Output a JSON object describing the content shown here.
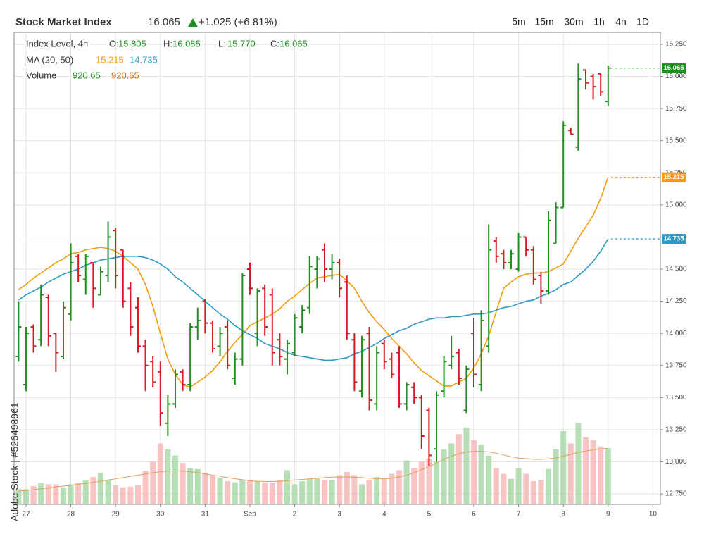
{
  "header": {
    "title": "Stock Market Index",
    "price": "16.065",
    "change": "+1.025 (+6.81%)",
    "timeframes": [
      "5m",
      "15m",
      "30m",
      "1h",
      "4h",
      "1D"
    ]
  },
  "legend": {
    "instrument": "Index Level, 4h",
    "ohlc": [
      {
        "label": "O:",
        "value": "15.805"
      },
      {
        "label": "H:",
        "value": "16.085"
      },
      {
        "label": "L:",
        "value": "15.770"
      },
      {
        "label": "C:",
        "value": "16.065"
      }
    ],
    "ma_label": "MA (20, 50)",
    "ma_values": [
      "15.215",
      "14.735"
    ],
    "volume_label": "Volume",
    "volume_values": [
      "920.65",
      "920.65"
    ]
  },
  "watermark": "Adobe Stock | #526498961",
  "chart_data": {
    "type": "ohlc",
    "x": [
      0,
      1,
      2,
      3,
      4,
      5,
      6,
      7,
      8,
      9,
      10,
      11,
      12,
      13,
      14,
      15,
      16,
      17,
      18,
      19,
      20,
      21,
      22,
      23,
      24,
      25,
      26,
      27,
      28,
      29,
      30,
      31,
      32,
      33,
      34,
      35,
      36,
      37,
      38,
      39,
      40,
      41,
      42,
      43,
      44,
      45,
      46,
      47,
      48,
      49,
      50,
      51,
      52,
      53,
      54,
      55,
      56,
      57,
      58,
      59,
      60,
      61,
      62,
      63,
      64,
      65,
      66,
      67,
      68,
      69,
      70,
      71,
      72,
      73,
      74,
      75,
      76,
      77,
      78,
      79
    ],
    "open": [
      13.82,
      13.6,
      14.05,
      13.95,
      14.28,
      14.0,
      13.82,
      14.15,
      14.6,
      14.42,
      14.55,
      14.3,
      14.45,
      14.8,
      14.65,
      14.35,
      14.2,
      13.9,
      13.78,
      13.7,
      13.3,
      13.45,
      13.7,
      13.6,
      14.05,
      14.25,
      14.08,
      13.9,
      14.05,
      13.65,
      13.8,
      14.5,
      14.0,
      14.35,
      14.3,
      13.95,
      13.8,
      13.85,
      14.05,
      14.2,
      14.5,
      14.65,
      14.5,
      14.55,
      14.4,
      13.95,
      13.55,
      14.0,
      13.45,
      13.92,
      13.8,
      13.85,
      13.45,
      13.58,
      13.5,
      13.4,
      13.1,
      13.55,
      13.75,
      13.85,
      13.4,
      14.0,
      13.6,
      13.9,
      14.72,
      14.62,
      14.55,
      14.5,
      14.75,
      14.65,
      14.45,
      14.33,
      14.7,
      14.98,
      15.58,
      15.45,
      16.05,
      16.0,
      16.02,
      15.805
    ],
    "high": [
      14.25,
      14.05,
      14.07,
      14.38,
      14.3,
      14.0,
      14.25,
      14.7,
      14.62,
      14.62,
      14.55,
      14.52,
      14.87,
      14.82,
      14.65,
      14.4,
      14.28,
      13.95,
      13.82,
      13.78,
      13.52,
      13.72,
      13.72,
      14.08,
      14.2,
      14.27,
      14.1,
      14.05,
      14.1,
      13.85,
      14.47,
      14.55,
      14.35,
      14.38,
      14.35,
      14.0,
      13.95,
      14.15,
      14.22,
      14.6,
      14.6,
      14.7,
      14.62,
      14.58,
      14.45,
      14.0,
      13.98,
      14.05,
      13.9,
      13.95,
      13.85,
      13.9,
      13.62,
      13.62,
      13.52,
      13.42,
      13.55,
      13.82,
      13.98,
      13.88,
      13.75,
      14.12,
      14.18,
      14.85,
      14.75,
      14.65,
      14.65,
      14.78,
      14.75,
      14.68,
      14.48,
      14.95,
      15.02,
      15.65,
      15.6,
      16.1,
      16.05,
      16.02,
      16.02,
      16.085
    ],
    "low": [
      13.78,
      13.55,
      13.85,
      13.9,
      13.9,
      13.7,
      13.8,
      14.1,
      14.4,
      14.3,
      14.2,
      14.3,
      14.4,
      14.35,
      14.2,
      13.98,
      13.85,
      13.55,
      13.58,
      13.28,
      13.2,
      13.42,
      13.55,
      13.55,
      13.95,
      14.0,
      13.85,
      13.82,
      13.72,
      13.6,
      13.75,
      14.3,
      13.9,
      13.98,
      13.75,
      13.75,
      13.68,
      13.82,
      14.0,
      14.15,
      14.35,
      14.4,
      14.42,
      14.28,
      13.95,
      13.55,
      13.5,
      13.4,
      13.4,
      13.72,
      13.65,
      13.42,
      13.4,
      13.45,
      13.1,
      12.97,
      13.0,
      13.5,
      13.72,
      13.6,
      13.38,
      13.58,
      13.55,
      13.85,
      14.55,
      14.5,
      14.5,
      14.48,
      14.6,
      14.38,
      14.23,
      14.3,
      14.7,
      14.98,
      15.55,
      15.42,
      15.9,
      15.82,
      15.85,
      15.77
    ],
    "close": [
      14.05,
      14.0,
      13.9,
      14.3,
      13.98,
      13.85,
      14.2,
      14.55,
      14.45,
      14.6,
      14.35,
      14.48,
      14.75,
      14.45,
      14.25,
      14.05,
      13.9,
      13.75,
      13.62,
      13.38,
      13.45,
      13.68,
      13.6,
      14.05,
      14.1,
      14.08,
      13.88,
      14.0,
      13.75,
      13.8,
      14.45,
      14.35,
      14.33,
      14.05,
      13.85,
      13.82,
      13.92,
      14.12,
      14.18,
      14.52,
      14.58,
      14.5,
      14.55,
      14.35,
      14.0,
      13.62,
      13.95,
      13.48,
      13.85,
      13.78,
      13.68,
      13.45,
      13.6,
      13.5,
      13.2,
      13.05,
      13.52,
      13.78,
      13.82,
      13.65,
      13.72,
      13.68,
      14.1,
      14.65,
      14.6,
      14.55,
      14.62,
      14.75,
      14.65,
      14.42,
      14.33,
      14.88,
      14.98,
      15.62,
      15.55,
      15.98,
      15.95,
      15.92,
      15.88,
      16.065
    ],
    "up_color": "#1f8f1f",
    "down_color": "#d71920",
    "series": [
      {
        "color": "#f39c12",
        "values": [
          14.34,
          14.38,
          14.43,
          14.47,
          14.51,
          14.55,
          14.58,
          14.62,
          14.63,
          14.65,
          14.66,
          14.67,
          14.66,
          14.64,
          14.6,
          14.55,
          14.5,
          14.38,
          14.21,
          14.0,
          13.8,
          13.68,
          13.6,
          13.58,
          13.62,
          13.66,
          13.71,
          13.78,
          13.86,
          13.93,
          13.99,
          14.06,
          14.09,
          14.12,
          14.15,
          14.19,
          14.25,
          14.29,
          14.34,
          14.39,
          14.43,
          14.44,
          14.45,
          14.46,
          14.41,
          14.35,
          14.25,
          14.16,
          14.09,
          14.03,
          13.96,
          13.9,
          13.84,
          13.77,
          13.71,
          13.67,
          13.63,
          13.59,
          13.59,
          13.62,
          13.65,
          13.73,
          13.84,
          13.98,
          14.17,
          14.35,
          14.4,
          14.44,
          14.46,
          14.47,
          14.47,
          14.48,
          14.51,
          14.54,
          14.64,
          14.74,
          14.83,
          14.92,
          15.05,
          15.215
        ]
      },
      {
        "color": "#2e9ac4",
        "values": [
          14.26,
          14.3,
          14.33,
          14.36,
          14.4,
          14.43,
          14.46,
          14.48,
          14.5,
          14.53,
          14.55,
          14.57,
          14.58,
          14.59,
          14.6,
          14.6,
          14.6,
          14.59,
          14.57,
          14.54,
          14.5,
          14.44,
          14.4,
          14.35,
          14.3,
          14.25,
          14.2,
          14.15,
          14.11,
          14.06,
          14.02,
          13.99,
          13.96,
          13.92,
          13.9,
          13.88,
          13.85,
          13.83,
          13.82,
          13.81,
          13.8,
          13.79,
          13.79,
          13.8,
          13.81,
          13.84,
          13.86,
          13.89,
          13.92,
          13.96,
          13.99,
          14.02,
          14.04,
          14.07,
          14.09,
          14.11,
          14.12,
          14.12,
          14.13,
          14.13,
          14.14,
          14.15,
          14.15,
          14.16,
          14.18,
          14.2,
          14.21,
          14.23,
          14.25,
          14.26,
          14.29,
          14.31,
          14.34,
          14.38,
          14.4,
          14.45,
          14.5,
          14.56,
          14.64,
          14.735
        ]
      }
    ],
    "volume": [
      250,
      250,
      300,
      350,
      330,
      330,
      280,
      330,
      350,
      400,
      450,
      520,
      400,
      320,
      280,
      290,
      320,
      550,
      700,
      1000,
      900,
      800,
      680,
      600,
      580,
      520,
      470,
      430,
      380,
      360,
      400,
      400,
      380,
      360,
      350,
      400,
      560,
      330,
      380,
      420,
      440,
      400,
      400,
      480,
      530,
      480,
      330,
      400,
      450,
      430,
      500,
      560,
      720,
      600,
      700,
      750,
      700,
      900,
      1000,
      1150,
      1260,
      1050,
      980,
      800,
      600,
      500,
      420,
      600,
      500,
      380,
      400,
      580,
      900,
      1200,
      1000,
      1340,
      1100,
      1050,
      950,
      920.65
    ],
    "volume_ma": [
      220,
      230,
      240,
      255,
      270,
      285,
      300,
      315,
      330,
      345,
      360,
      380,
      400,
      420,
      440,
      460,
      480,
      500,
      520,
      535,
      545,
      550,
      545,
      535,
      520,
      500,
      480,
      460,
      440,
      420,
      405,
      390,
      380,
      375,
      375,
      380,
      390,
      400,
      410,
      420,
      430,
      440,
      445,
      450,
      450,
      445,
      440,
      430,
      420,
      420,
      430,
      450,
      480,
      520,
      570,
      620,
      680,
      740,
      790,
      830,
      860,
      870,
      870,
      860,
      840,
      810,
      780,
      760,
      750,
      740,
      740,
      745,
      760,
      790,
      820,
      850,
      875,
      895,
      910,
      920.65
    ],
    "volume_lim": [
      0,
      1500
    ],
    "volume_up_color": "#a9d9a9",
    "volume_down_color": "#f6b9b9",
    "volume_ma_color": "#e0a060",
    "xlim": [
      -0.6,
      86
    ],
    "xticks": [
      {
        "value": 1,
        "label": "27"
      },
      {
        "value": 7,
        "label": "28"
      },
      {
        "value": 13,
        "label": "29"
      },
      {
        "value": 19,
        "label": "30"
      },
      {
        "value": 25,
        "label": "31"
      },
      {
        "value": 31,
        "label": "Sep"
      },
      {
        "value": 37,
        "label": "2"
      },
      {
        "value": 43,
        "label": "3"
      },
      {
        "value": 49,
        "label": "4"
      },
      {
        "value": 55,
        "label": "5"
      },
      {
        "value": 61,
        "label": "6"
      },
      {
        "value": 67,
        "label": "7"
      },
      {
        "value": 73,
        "label": "8"
      },
      {
        "value": 79,
        "label": "9"
      },
      {
        "value": 85,
        "label": "10"
      }
    ],
    "ylim": [
      12.668,
      16.343
    ],
    "yticks": [
      {
        "value": 12.75,
        "label": "12.750"
      },
      {
        "value": 13,
        "label": "13.000"
      },
      {
        "value": 13.25,
        "label": "13.250"
      },
      {
        "value": 13.5,
        "label": "13.500"
      },
      {
        "value": 13.75,
        "label": "13.750"
      },
      {
        "value": 14,
        "label": "14.000"
      },
      {
        "value": 14.25,
        "label": "14.250"
      },
      {
        "value": 14.5,
        "label": "14.500"
      },
      {
        "value": 14.75,
        "label": "14.750"
      },
      {
        "value": 15,
        "label": "15.000"
      },
      {
        "value": 15.25,
        "label": "15.250"
      },
      {
        "value": 15.5,
        "label": "15.500"
      },
      {
        "value": 15.75,
        "label": "15.750"
      },
      {
        "value": 16,
        "label": "16.000"
      },
      {
        "value": 16.25,
        "label": "16.250"
      }
    ],
    "grid": true
  }
}
